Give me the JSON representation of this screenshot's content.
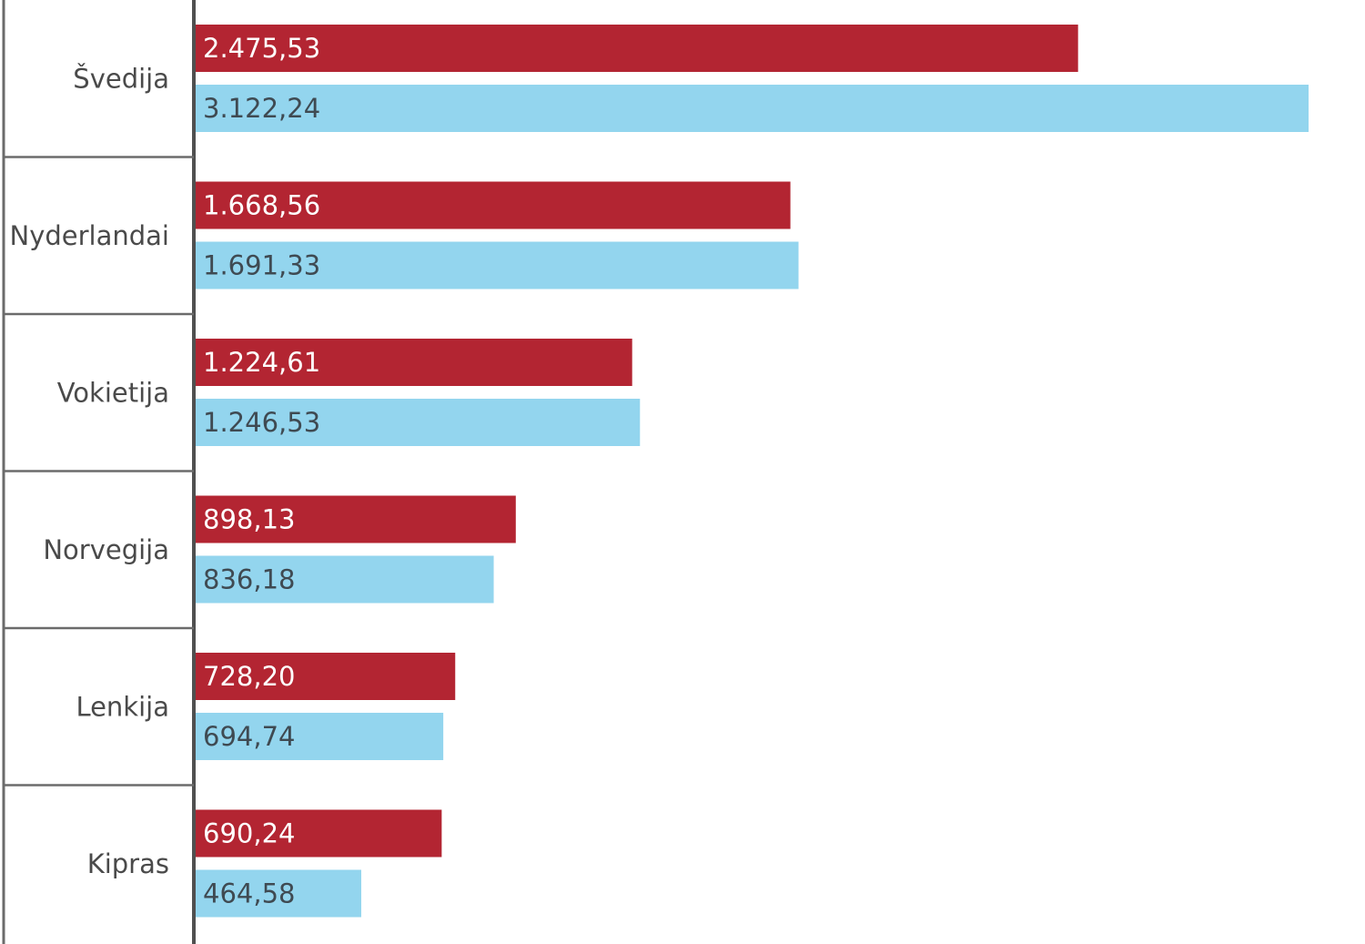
{
  "chart_data": {
    "type": "bar",
    "orientation": "horizontal",
    "categories": [
      "Švedija",
      "Nyderlandai",
      "Vokietija",
      "Norvegija",
      "Lenkija",
      "Kipras"
    ],
    "series": [
      {
        "color": "#b32532",
        "label_color": "#ffffff",
        "values": [
          2475.53,
          1668.56,
          1224.61,
          898.13,
          728.2,
          690.24
        ],
        "value_labels": [
          "2.475,53",
          "1.668,56",
          "1.224,61",
          "898,13",
          "728,20",
          "690,24"
        ]
      },
      {
        "color": "#93d5ee",
        "label_color": "#3f4a52",
        "values": [
          3122.24,
          1691.33,
          1246.53,
          836.18,
          694.74,
          464.58
        ],
        "value_labels": [
          "3.122,24",
          "1.691,33",
          "1.246,53",
          "836,18",
          "694,74",
          "464,58"
        ]
      }
    ],
    "xlim": [
      0,
      3122.24
    ],
    "grid": false,
    "legend": "none"
  }
}
